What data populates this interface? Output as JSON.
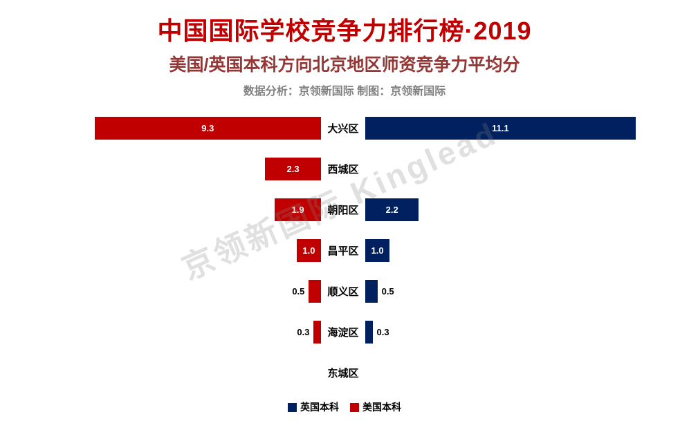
{
  "header": {
    "title": "中国国际学校竞争力排行榜·2019",
    "subtitle": "美国/英国本科方向北京地区师资竞争力平均分",
    "credits": "数据分析：京领新国际    制图：京领新国际"
  },
  "watermark": "京领新国际 Kinglead",
  "legend": [
    {
      "label": "英国本科",
      "color": "#002060"
    },
    {
      "label": "美国本科",
      "color": "#c00000"
    }
  ],
  "chart_data": {
    "type": "bar",
    "subtype": "diverging-horizontal",
    "title": "中国国际学校竞争力排行榜·2019",
    "subtitle": "美国/英国本科方向北京地区师资竞争力平均分",
    "categories": [
      "大兴区",
      "西城区",
      "朝阳区",
      "昌平区",
      "顺义区",
      "海淀区",
      "东城区"
    ],
    "series": [
      {
        "name": "美国本科",
        "side": "left",
        "color": "#c00000",
        "values": [
          9.3,
          2.3,
          1.9,
          1.0,
          0.5,
          0.3,
          null
        ]
      },
      {
        "name": "英国本科",
        "side": "right",
        "color": "#002060",
        "values": [
          11.1,
          null,
          2.2,
          1.0,
          0.5,
          0.3,
          null
        ]
      }
    ],
    "value_max": 11.1,
    "grid": false,
    "legend_position": "bottom"
  }
}
